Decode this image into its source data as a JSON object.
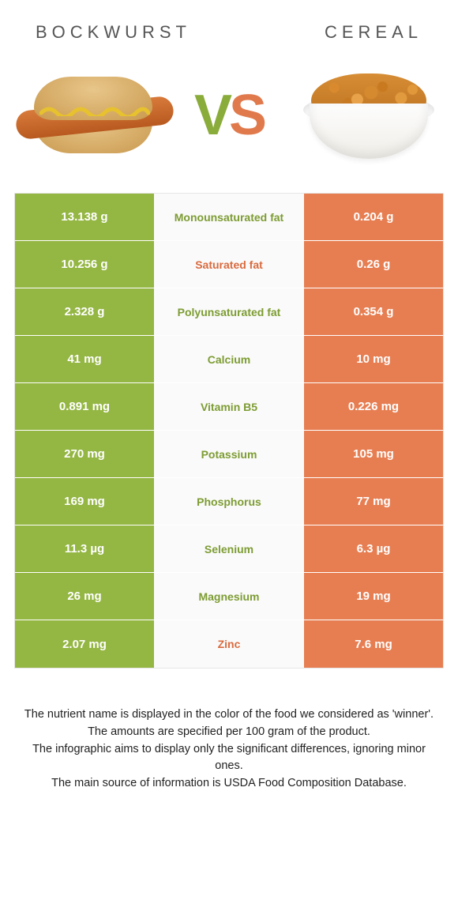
{
  "colors": {
    "left": "#94b643",
    "right": "#e77e52",
    "left_text": "#7d9c33",
    "right_text": "#d96a3e",
    "neutral_text": "#888888"
  },
  "left_title": "BOCKWURST",
  "right_title": "CEREAL",
  "vs": {
    "v": "V",
    "s": "S"
  },
  "rows": [
    {
      "left": "13.138 g",
      "label": "Monounsaturated fat",
      "right": "0.204 g",
      "winner": "left"
    },
    {
      "left": "10.256 g",
      "label": "Saturated fat",
      "right": "0.26 g",
      "winner": "right"
    },
    {
      "left": "2.328 g",
      "label": "Polyunsaturated fat",
      "right": "0.354 g",
      "winner": "left"
    },
    {
      "left": "41 mg",
      "label": "Calcium",
      "right": "10 mg",
      "winner": "left"
    },
    {
      "left": "0.891 mg",
      "label": "Vitamin B5",
      "right": "0.226 mg",
      "winner": "left"
    },
    {
      "left": "270 mg",
      "label": "Potassium",
      "right": "105 mg",
      "winner": "left"
    },
    {
      "left": "169 mg",
      "label": "Phosphorus",
      "right": "77 mg",
      "winner": "left"
    },
    {
      "left": "11.3 µg",
      "label": "Selenium",
      "right": "6.3 µg",
      "winner": "left"
    },
    {
      "left": "26 mg",
      "label": "Magnesium",
      "right": "19 mg",
      "winner": "left"
    },
    {
      "left": "2.07 mg",
      "label": "Zinc",
      "right": "7.6 mg",
      "winner": "right"
    }
  ],
  "footer": {
    "l1": "The nutrient name is displayed in the color of the food we considered as 'winner'.",
    "l2": "The amounts are specified per 100 gram of the product.",
    "l3": "The infographic aims to display only the significant differences, ignoring minor ones.",
    "l4": "The main source of information is USDA Food Composition Database."
  }
}
